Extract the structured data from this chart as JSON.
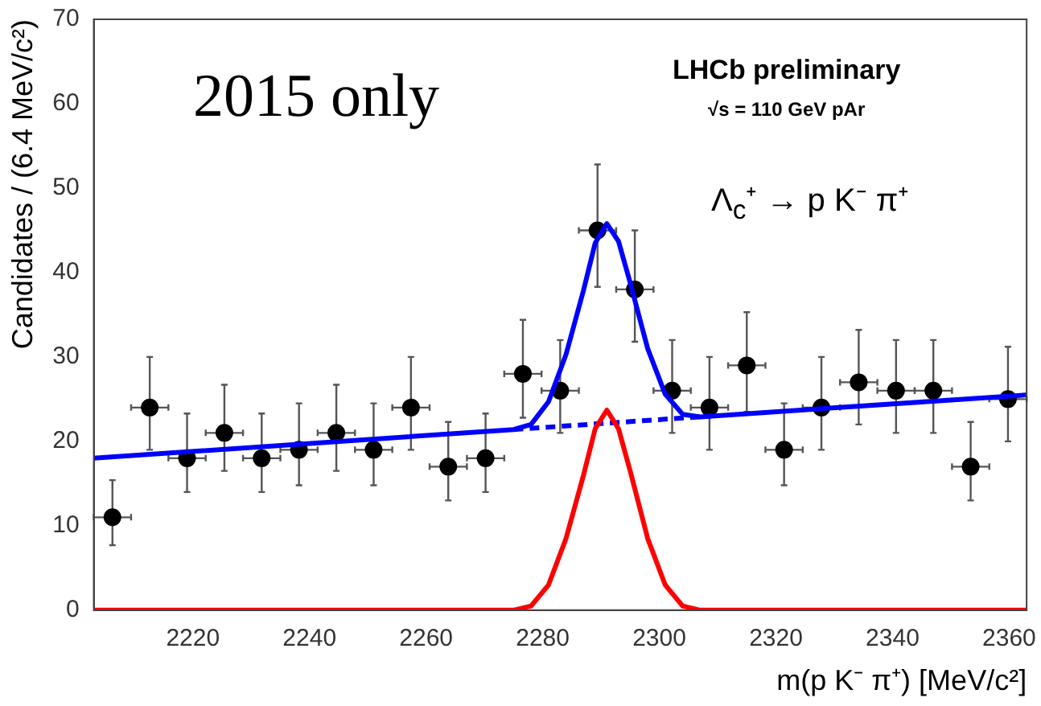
{
  "chart_data": {
    "type": "scatter",
    "xlabel": "m(p K⁻ π⁺) [MeV/c²]",
    "ylabel": "Candidates / (6.4 MeV/c²)",
    "annotations": [
      "2015 only",
      "LHCb preliminary",
      "√s = 110 GeV pAr",
      "Λ$_{c}$⁺ → p K⁻ π⁺"
    ],
    "xlim": [
      2203,
      2363
    ],
    "ylim": [
      0,
      70
    ],
    "xticks": [
      2220,
      2240,
      2260,
      2280,
      2300,
      2320,
      2340,
      2360
    ],
    "yticks": [
      0,
      10,
      20,
      30,
      40,
      50,
      60,
      70
    ],
    "grid": false,
    "legend": false,
    "series": [
      {
        "type": "line",
        "color": "#ff0000",
        "line_style": "solid",
        "marker": "none",
        "x": [
          2203,
          2275,
          2278,
          2281,
          2284,
          2287,
          2289,
          2291,
          2293,
          2295,
          2298,
          2301,
          2304,
          2307,
          2363
        ],
        "values": [
          0,
          0,
          0.5,
          3,
          8.5,
          16,
          21.5,
          23.7,
          21.5,
          16.5,
          8.5,
          3,
          0.5,
          0,
          0
        ]
      },
      {
        "type": "line",
        "color": "#0000ff",
        "line_style": "dashed",
        "marker": "none",
        "x": [
          2275,
          2309
        ],
        "values": [
          21.4,
          23
        ]
      },
      {
        "type": "line",
        "color": "#0000ff",
        "line_style": "solid",
        "marker": "none",
        "x": [
          2203,
          2275,
          2278,
          2281,
          2284,
          2287,
          2289,
          2291,
          2293,
          2295,
          2298,
          2301,
          2304,
          2307,
          2363
        ],
        "values": [
          18,
          21.4,
          22,
          24.7,
          30.3,
          37.9,
          43.5,
          45.8,
          43.7,
          38.8,
          31,
          25.6,
          23.2,
          22.9,
          25.5
        ]
      },
      {
        "color": "#000000",
        "marker": "circle",
        "x": [
          2206.2,
          2212.6,
          2219,
          2225.4,
          2231.8,
          2238.2,
          2244.6,
          2251,
          2257.4,
          2263.8,
          2270.2,
          2276.6,
          2283,
          2289.4,
          2295.8,
          2302.2,
          2308.6,
          2315,
          2321.4,
          2327.8,
          2334.2,
          2340.6,
          2347,
          2353.4,
          2359.8
        ],
        "values": [
          11,
          24,
          18,
          21,
          18,
          19,
          21,
          19,
          24,
          17,
          18,
          28,
          26,
          45,
          38,
          26,
          24,
          29,
          19,
          24,
          27,
          26,
          26,
          17,
          25
        ],
        "errors": [
          [
            7.7,
            15.4
          ],
          [
            19,
            30
          ],
          [
            14,
            23.3
          ],
          [
            16.5,
            26.7
          ],
          [
            14,
            23.3
          ],
          [
            14.8,
            24.5
          ],
          [
            16.5,
            26.7
          ],
          [
            14.8,
            24.5
          ],
          [
            19,
            30
          ],
          [
            13,
            22.3
          ],
          [
            14,
            23.3
          ],
          [
            22.8,
            34.4
          ],
          [
            21,
            32
          ],
          [
            38.3,
            52.8
          ],
          [
            31.8,
            45
          ],
          [
            21,
            32
          ],
          [
            19,
            30
          ],
          [
            23.5,
            35.3
          ],
          [
            14.8,
            24.5
          ],
          [
            19,
            30
          ],
          [
            22,
            33.2
          ],
          [
            21,
            32
          ],
          [
            21,
            32
          ],
          [
            13,
            22.3
          ],
          [
            20,
            31.2
          ]
        ],
        "xerrors": [
          3.2,
          3.2,
          3.2,
          3.2,
          3.2,
          3.2,
          3.2,
          3.2,
          3.2,
          3.2,
          3.2,
          3.2,
          3.2,
          3.2,
          3.2,
          3.2,
          3.2,
          3.2,
          3.2,
          3.2,
          3.2,
          3.2,
          3.2,
          3.2,
          3.2
        ]
      }
    ]
  }
}
